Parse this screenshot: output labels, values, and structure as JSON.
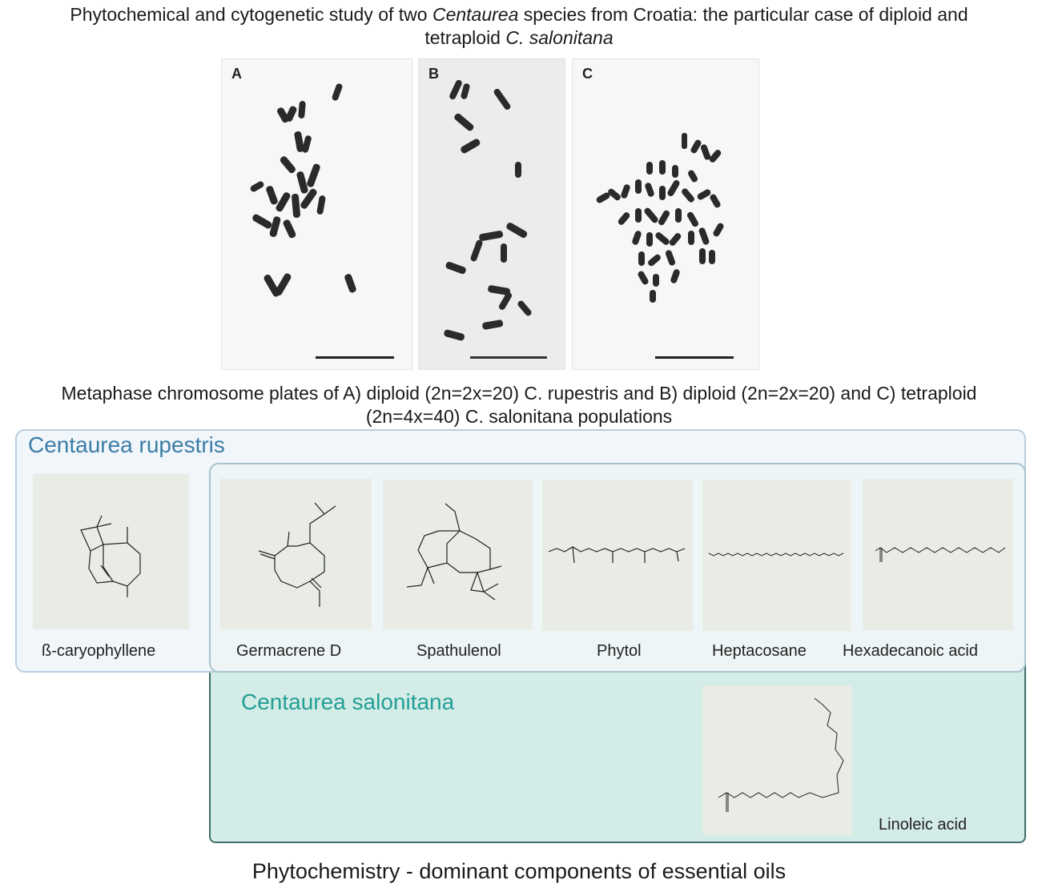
{
  "title": {
    "line1_pre": "Phytochemical and cytogenetic study of two ",
    "line1_italic": "Centaurea",
    "line1_post": " species from Croatia: the particular case of diploid and",
    "line2_pre": "tetraploid ",
    "line2_italic": "C. salonitana"
  },
  "plates": [
    {
      "letter": "A"
    },
    {
      "letter": "B"
    },
    {
      "letter": "C"
    }
  ],
  "caption": {
    "line1": "Metaphase chromosome plates of A) diploid (2n=2x=20) C. rupestris and B) diploid (2n=2x=20) and C) tetraploid",
    "line2": "(2n=4x=40) C. salonitana populations"
  },
  "groups": {
    "rupestris": "Centaurea rupestris",
    "salonitana": "Centaurea salonitana"
  },
  "molecules": [
    {
      "name": "ß-caryophyllene"
    },
    {
      "name": "Germacrene D"
    },
    {
      "name": "Spathulenol"
    },
    {
      "name": "Phytol"
    },
    {
      "name": "Heptacosane"
    },
    {
      "name": "Hexadecanoic acid"
    },
    {
      "name": "Linoleic acid"
    }
  ],
  "footer": "Phytochemistry - dominant components of essential oils"
}
